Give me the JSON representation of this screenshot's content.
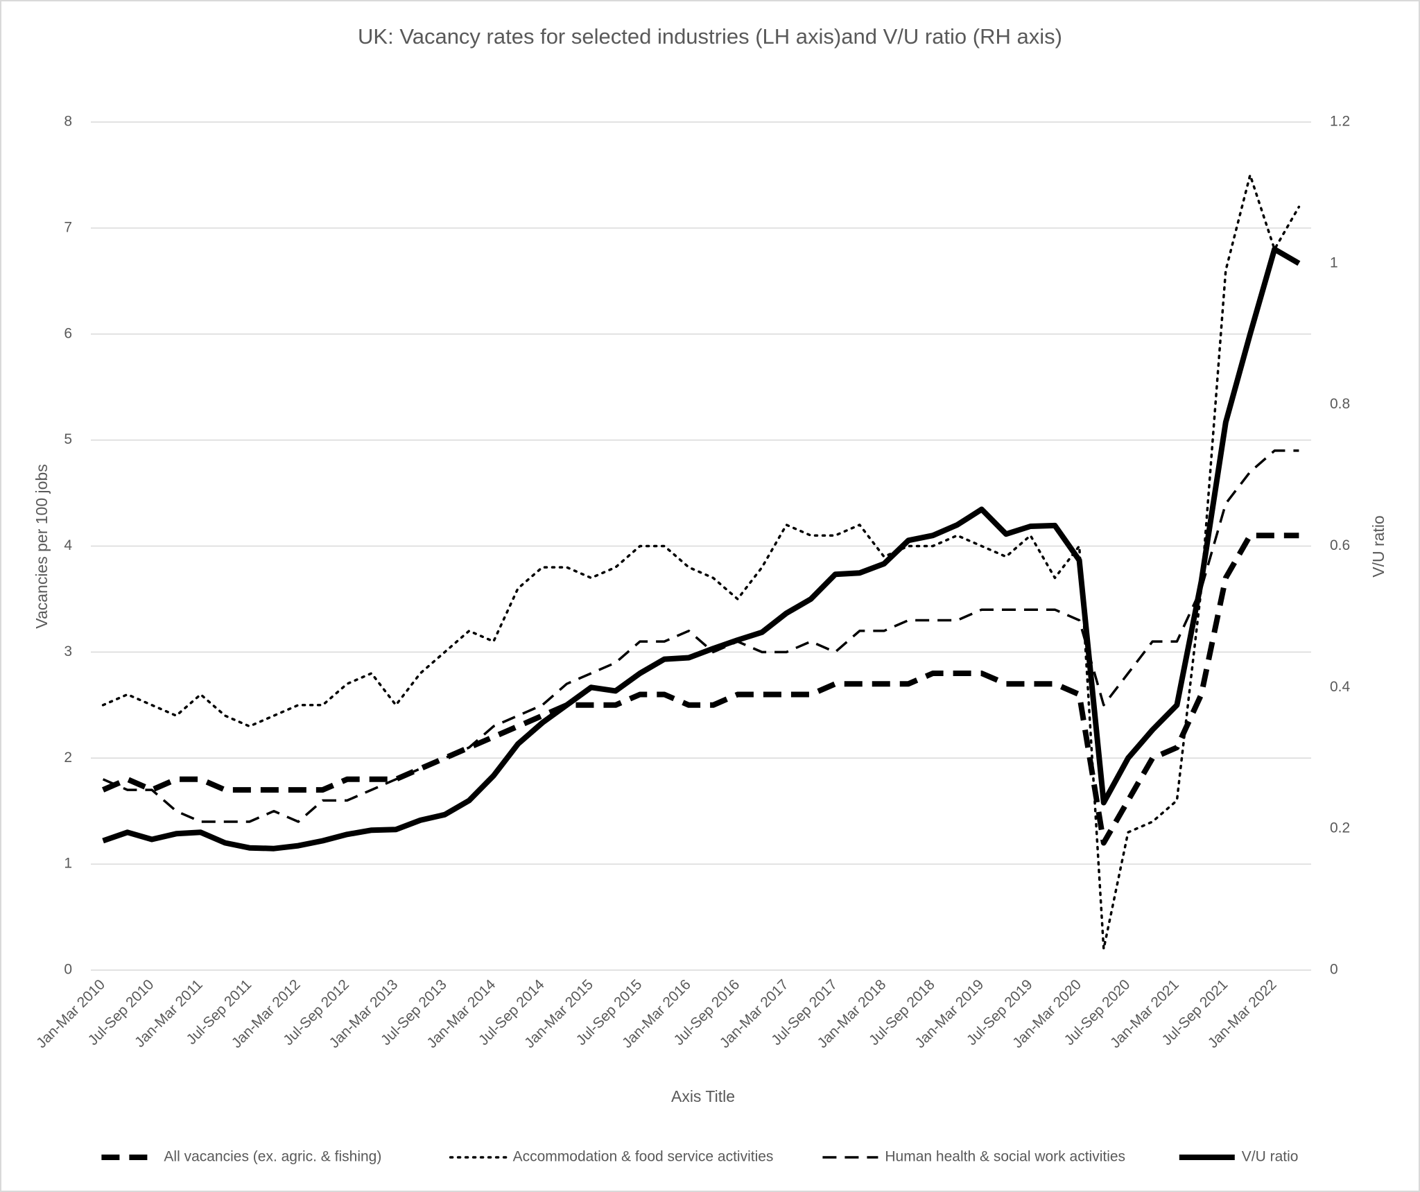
{
  "chart_data": {
    "type": "line",
    "title": "UK: Vacancy rates for selected industries (LH axis)and V/U ratio (RH axis)",
    "x_label": "Axis Title",
    "y_label": "Vacancies per 100 jobs",
    "y2_label": "V/U ratio",
    "categories": [
      "Jan-Mar 2010",
      null,
      "Jul-Sep 2010",
      null,
      "Jan-Mar 2011",
      null,
      "Jul-Sep 2011",
      null,
      "Jan-Mar 2012",
      null,
      "Jul-Sep 2012",
      null,
      "Jan-Mar 2013",
      null,
      "Jul-Sep 2013",
      null,
      "Jan-Mar 2014",
      null,
      "Jul-Sep 2014",
      null,
      "Jan-Mar 2015",
      null,
      "Jul-Sep 2015",
      null,
      "Jan-Mar 2016",
      null,
      "Jul-Sep 2016",
      null,
      "Jan-Mar 2017",
      null,
      "Jul-Sep 2017",
      null,
      "Jan-Mar 2018",
      null,
      "Jul-Sep 2018",
      null,
      "Jan-Mar 2019",
      null,
      "Jul-Sep 2019",
      null,
      "Jan-Mar 2020",
      null,
      "Jul-Sep 2020",
      null,
      "Jan-Mar 2021",
      null,
      "Jul-Sep 2021",
      null,
      "Jan-Mar 2022",
      null
    ],
    "ylim": [
      0,
      8
    ],
    "yticks": [
      0,
      1,
      2,
      3,
      4,
      5,
      6,
      7,
      8
    ],
    "y2lim": [
      0,
      1.2
    ],
    "y2ticks": [
      0,
      0.2,
      0.4,
      0.6,
      0.8,
      1,
      1.2
    ],
    "grid": true,
    "legend": "bottom",
    "series": [
      {
        "name": "All vacancies (ex. agric. & fishing)",
        "color": "#000000",
        "line_style": "dashed",
        "values": [
          1.7,
          1.8,
          1.7,
          1.8,
          1.8,
          1.7,
          1.7,
          1.7,
          1.7,
          1.7,
          1.8,
          1.8,
          1.8,
          1.9,
          2.0,
          2.1,
          2.2,
          2.3,
          2.4,
          2.5,
          2.5,
          2.5,
          2.6,
          2.6,
          2.5,
          2.5,
          2.6,
          2.6,
          2.6,
          2.6,
          2.7,
          2.7,
          2.7,
          2.7,
          2.8,
          2.8,
          2.8,
          2.7,
          2.7,
          2.7,
          2.6,
          1.2,
          1.6,
          2.0,
          2.1,
          2.6,
          3.7,
          4.1,
          4.1,
          4.1
        ]
      },
      {
        "name": "Accommodation & food service activities",
        "color": "#000000",
        "line_style": "dotted",
        "values": [
          2.5,
          2.6,
          2.5,
          2.4,
          2.6,
          2.4,
          2.3,
          2.4,
          2.5,
          2.5,
          2.7,
          2.8,
          2.5,
          2.8,
          3.0,
          3.2,
          3.1,
          3.6,
          3.8,
          3.8,
          3.7,
          3.8,
          4.0,
          4.0,
          3.8,
          3.7,
          3.5,
          3.8,
          4.2,
          4.1,
          4.1,
          4.2,
          3.9,
          4.0,
          4.0,
          4.1,
          4.0,
          3.9,
          4.1,
          3.7,
          4.0,
          0.2,
          1.3,
          1.4,
          1.6,
          3.6,
          6.6,
          7.5,
          6.8,
          7.2
        ]
      },
      {
        "name": "Human health & social work activities",
        "color": "#000000",
        "line_style": "dashed",
        "values": [
          1.8,
          1.7,
          1.7,
          1.5,
          1.4,
          1.4,
          1.4,
          1.5,
          1.4,
          1.6,
          1.6,
          1.7,
          1.8,
          1.9,
          2.0,
          2.1,
          2.3,
          2.4,
          2.5,
          2.7,
          2.8,
          2.9,
          3.1,
          3.1,
          3.2,
          3.0,
          3.1,
          3.0,
          3.0,
          3.1,
          3.0,
          3.2,
          3.2,
          3.3,
          3.3,
          3.3,
          3.4,
          3.4,
          3.4,
          3.4,
          3.3,
          2.5,
          2.8,
          3.1,
          3.1,
          3.6,
          4.4,
          4.7,
          4.9,
          4.9
        ]
      },
      {
        "name": "V/U ratio",
        "color": "#000000",
        "line_style": "solid",
        "axis": "y2",
        "values": [
          0.183,
          0.195,
          0.185,
          0.193,
          0.195,
          0.18,
          0.173,
          0.172,
          0.176,
          0.183,
          0.192,
          0.198,
          0.199,
          0.212,
          0.22,
          0.24,
          0.275,
          0.32,
          0.35,
          0.375,
          0.4,
          0.395,
          0.42,
          0.44,
          0.442,
          0.455,
          0.467,
          0.478,
          0.505,
          0.525,
          0.56,
          0.562,
          0.575,
          0.608,
          0.615,
          0.63,
          0.652,
          0.617,
          0.628,
          0.629,
          0.58,
          0.237,
          0.3,
          0.34,
          0.375,
          0.55,
          0.775,
          0.9,
          1.02,
          1.0
        ]
      }
    ]
  }
}
